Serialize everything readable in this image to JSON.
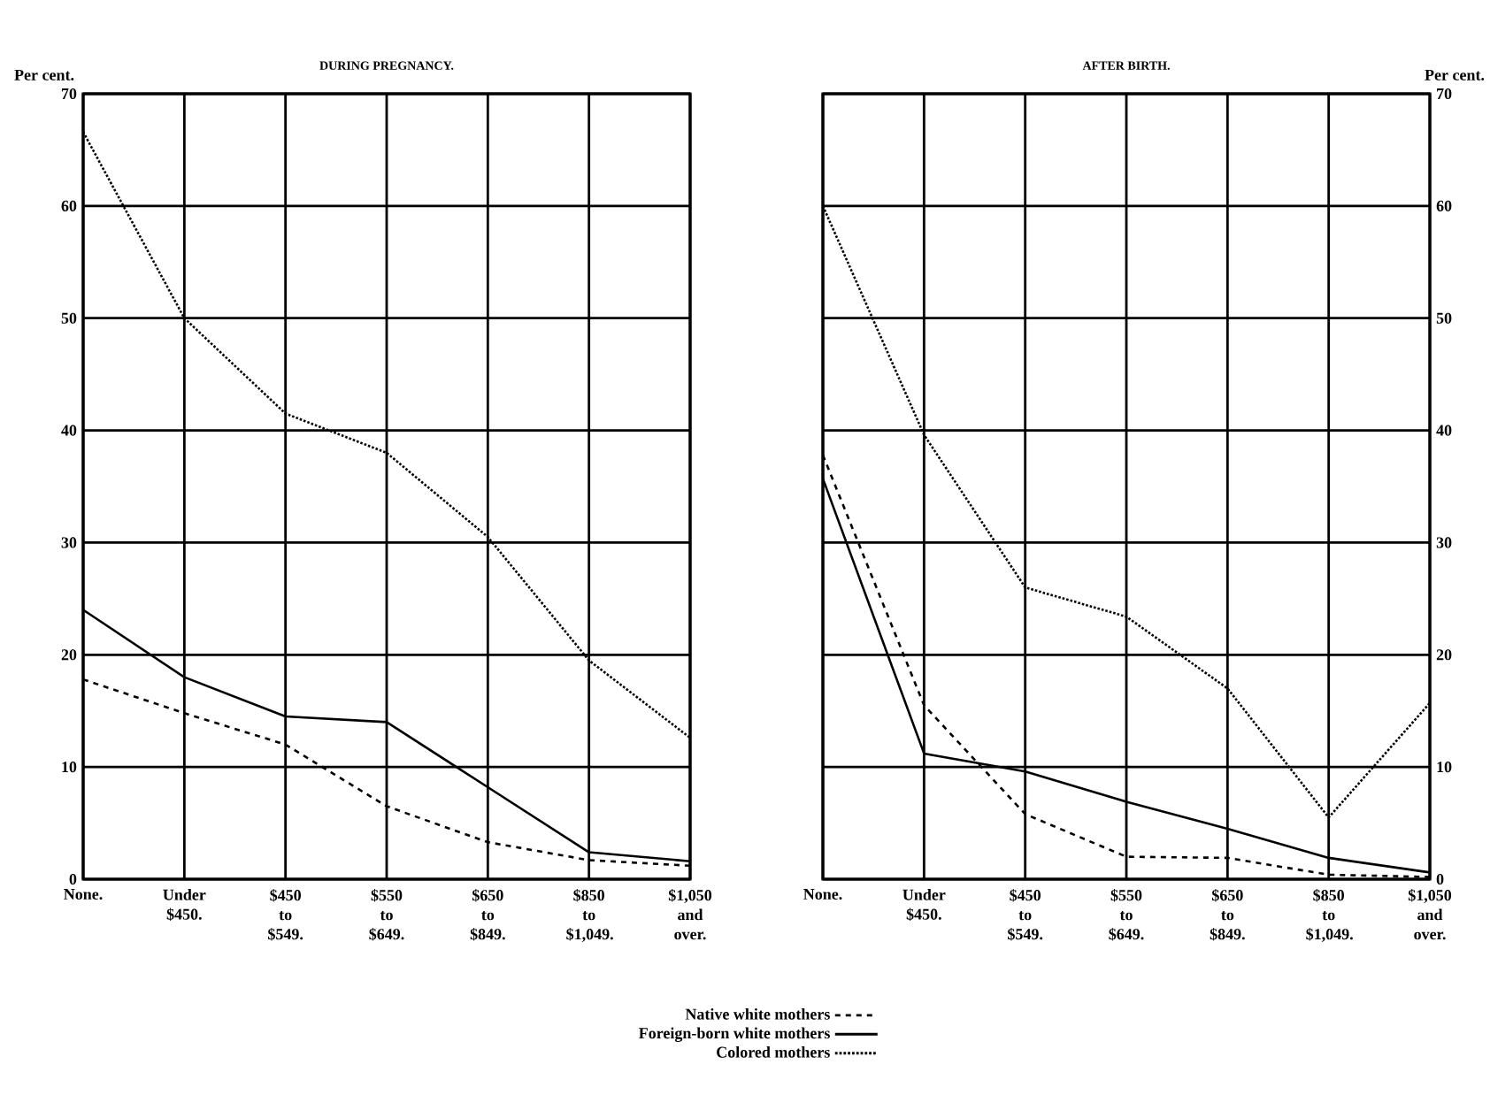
{
  "chart_data": [
    {
      "type": "line",
      "title": "DURING PREGNANCY.",
      "ylabel": "Per cent.",
      "categories": [
        "None.",
        "Under $450.",
        "$450 to $549.",
        "$550 to $649.",
        "$650 to $849.",
        "$850 to $1,049.",
        "$1,050 and over."
      ],
      "ylim": [
        0,
        70
      ],
      "yticks": [
        0,
        10,
        20,
        30,
        40,
        50,
        60,
        70
      ],
      "grid": true,
      "legend": "bottom",
      "series": [
        {
          "name": "Native white mothers",
          "color": "#000000",
          "line_style": "dashed",
          "values": [
            17.8,
            14.8,
            12,
            6.5,
            3.3,
            1.7,
            1.2
          ]
        },
        {
          "name": "Foreign-born white mothers",
          "color": "#000000",
          "line_style": "solid",
          "values": [
            24,
            18,
            14.5,
            14,
            8.2,
            2.4,
            1.6
          ]
        },
        {
          "name": "Colored mothers",
          "color": "#000000",
          "line_style": "dotted",
          "values": [
            66.6,
            50,
            41.5,
            38,
            30.5,
            19.5,
            12.6
          ]
        }
      ]
    },
    {
      "type": "line",
      "title": "AFTER BIRTH.",
      "ylabel": "Per cent.",
      "categories": [
        "None.",
        "Under $450.",
        "$450 to $549.",
        "$550 to $649.",
        "$650 to $849.",
        "$850 to $1,049.",
        "$1,050 and over."
      ],
      "ylim": [
        0,
        70
      ],
      "yticks": [
        0,
        10,
        20,
        30,
        40,
        50,
        60,
        70
      ],
      "grid": true,
      "series": [
        {
          "color": "#000000",
          "line_style": "dashed",
          "values": [
            37.8,
            15.5,
            5.8,
            2,
            1.9,
            0.4,
            0.2
          ]
        },
        {
          "color": "#000000",
          "line_style": "solid",
          "values": [
            35.7,
            11.2,
            9.6,
            6.9,
            4.5,
            1.9,
            0.6
          ]
        },
        {
          "color": "#000000",
          "line_style": "dotted",
          "values": [
            60,
            39.6,
            26,
            23.4,
            17,
            5.5,
            15.7
          ]
        }
      ]
    }
  ]
}
